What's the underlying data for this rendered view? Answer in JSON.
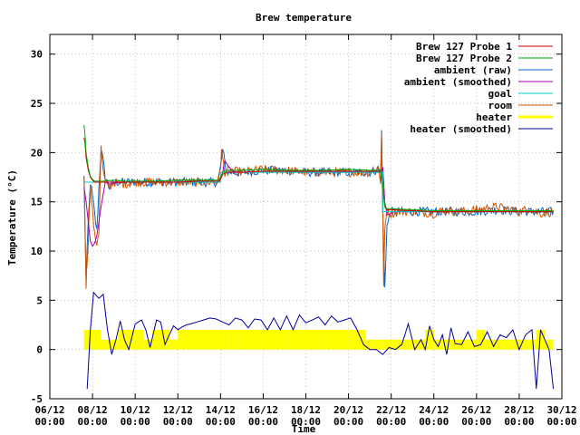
{
  "chart_data": {
    "type": "line",
    "title": "Brew temperature",
    "xlabel": "Time",
    "ylabel": "Temperature (°C)",
    "ylim": [
      -5,
      32
    ],
    "xlim": [
      0,
      24
    ],
    "yticks": [
      -5,
      0,
      5,
      10,
      15,
      20,
      25,
      30
    ],
    "xticks": [
      {
        "x": 0,
        "line1": "06/12",
        "line2": "00:00"
      },
      {
        "x": 2,
        "line1": "08/12",
        "line2": "00:00"
      },
      {
        "x": 4,
        "line1": "10/12",
        "line2": "00:00"
      },
      {
        "x": 6,
        "line1": "12/12",
        "line2": "00:00"
      },
      {
        "x": 8,
        "line1": "14/12",
        "line2": "00:00"
      },
      {
        "x": 10,
        "line1": "16/12",
        "line2": "00:00"
      },
      {
        "x": 12,
        "line1": "18/12",
        "line2": "00:00"
      },
      {
        "x": 14,
        "line1": "20/12",
        "line2": "00:00"
      },
      {
        "x": 16,
        "line1": "22/12",
        "line2": "00:00"
      },
      {
        "x": 18,
        "line1": "24/12",
        "line2": "00:00"
      },
      {
        "x": 20,
        "line1": "26/12",
        "line2": "00:00"
      },
      {
        "x": 22,
        "line1": "28/12",
        "line2": "00:00"
      },
      {
        "x": 24,
        "line1": "30/12",
        "line2": "00:00"
      }
    ],
    "grid": true,
    "legend_position": "top-right",
    "series": [
      {
        "name": "Brew 127 Probe 1",
        "color": "#cc0000",
        "kind": "line",
        "x": [
          1.6,
          1.65,
          1.7,
          1.8,
          1.9,
          2.0,
          2.1,
          2.2,
          2.4,
          2.6,
          3.0,
          3.5,
          4.0,
          5.0,
          6.0,
          7.0,
          7.9,
          8.0,
          8.1,
          8.3,
          8.6,
          9.0,
          10.0,
          11.0,
          12.0,
          13.0,
          14.0,
          15.0,
          15.5,
          15.6,
          15.7,
          15.8,
          16.0,
          17.0,
          18.0,
          19.0,
          20.0,
          21.0,
          22.0,
          23.0,
          23.6
        ],
        "y": [
          21.5,
          21.0,
          19.5,
          18.2,
          17.5,
          17.2,
          17.0,
          17.0,
          17.0,
          17.0,
          17.0,
          17.0,
          17.0,
          17.0,
          17.0,
          17.1,
          17.1,
          17.3,
          17.8,
          18.0,
          18.0,
          18.0,
          18.1,
          18.1,
          18.1,
          18.1,
          18.1,
          18.1,
          18.1,
          16.5,
          14.5,
          14.2,
          14.2,
          14.1,
          14.0,
          14.0,
          14.0,
          14.0,
          14.0,
          14.0,
          14.0
        ]
      },
      {
        "name": "Brew 127 Probe 2",
        "color": "#00aa00",
        "kind": "line",
        "x": [
          1.6,
          1.65,
          1.7,
          1.8,
          1.9,
          2.0,
          2.1,
          2.2,
          2.4,
          2.6,
          3.0,
          3.5,
          4.0,
          5.0,
          6.0,
          7.0,
          7.9,
          8.0,
          8.1,
          8.3,
          8.6,
          9.0,
          10.0,
          11.0,
          12.0,
          13.0,
          14.0,
          15.0,
          15.5,
          15.6,
          15.7,
          15.8,
          16.0,
          17.0,
          18.0,
          19.0,
          20.0,
          21.0,
          22.0,
          23.0,
          23.6
        ],
        "y": [
          22.8,
          21.8,
          20.0,
          18.5,
          17.6,
          17.3,
          17.1,
          17.1,
          17.1,
          17.1,
          17.2,
          17.1,
          17.1,
          17.1,
          17.2,
          17.2,
          17.2,
          17.5,
          18.0,
          18.2,
          18.2,
          18.2,
          18.3,
          18.2,
          18.2,
          18.2,
          18.3,
          18.2,
          18.2,
          16.7,
          14.6,
          14.3,
          14.3,
          14.2,
          14.1,
          14.1,
          14.1,
          14.1,
          14.1,
          14.1,
          14.1
        ]
      },
      {
        "name": "ambient (raw)",
        "color": "#0066cc",
        "kind": "noisy",
        "x": [
          1.6,
          1.7,
          1.8,
          1.9,
          2.0,
          2.2,
          2.4,
          2.6,
          2.8,
          3.0,
          3.5,
          4.0,
          5.0,
          6.0,
          7.0,
          7.8,
          7.9,
          8.0,
          8.1,
          8.3,
          9.0,
          10.0,
          11.0,
          12.0,
          13.0,
          14.0,
          15.0,
          15.4,
          15.5,
          15.55,
          15.6,
          15.7,
          15.8,
          16.0,
          17.0,
          18.0,
          19.0,
          20.0,
          21.0,
          22.0,
          23.0,
          23.6
        ],
        "y": [
          17.5,
          7.0,
          13.0,
          17.0,
          15.5,
          12.0,
          20.5,
          17.5,
          16.5,
          17.0,
          17.0,
          17.0,
          17.0,
          17.0,
          17.0,
          17.0,
          17.2,
          18.5,
          20.2,
          18.0,
          18.0,
          18.2,
          18.2,
          18.0,
          18.0,
          18.0,
          18.0,
          18.3,
          18.0,
          22.0,
          14.0,
          6.5,
          12.5,
          14.0,
          14.0,
          14.0,
          14.0,
          14.0,
          14.2,
          14.0,
          14.0,
          14.0
        ]
      },
      {
        "name": "ambient (smoothed)",
        "color": "#aa00aa",
        "kind": "line",
        "x": [
          1.6,
          1.7,
          1.8,
          1.9,
          2.0,
          2.1,
          2.2,
          2.4,
          2.6,
          2.8,
          3.0,
          3.5,
          4.0,
          5.0,
          6.0,
          7.0,
          7.9,
          8.0,
          8.1,
          8.2,
          8.4,
          8.6,
          9.0,
          10.0,
          11.0,
          12.0,
          13.0,
          14.0,
          15.0,
          15.5,
          15.6,
          15.65,
          15.7,
          15.8,
          15.9,
          16.0,
          16.2,
          17.0,
          18.0,
          19.0,
          20.0,
          21.0,
          22.0,
          23.0,
          23.6
        ],
        "y": [
          16.5,
          15.0,
          13.0,
          11.0,
          10.5,
          10.8,
          11.5,
          14.5,
          17.0,
          16.8,
          16.9,
          17.0,
          17.0,
          17.0,
          17.0,
          17.0,
          17.0,
          17.2,
          18.0,
          19.2,
          18.5,
          18.1,
          18.0,
          18.1,
          18.1,
          18.0,
          18.0,
          18.0,
          18.0,
          18.0,
          18.5,
          17.0,
          15.0,
          13.7,
          13.7,
          13.9,
          14.0,
          14.0,
          14.0,
          14.0,
          14.0,
          14.0,
          14.0,
          14.0,
          14.0
        ]
      },
      {
        "name": "goal",
        "color": "#00cccc",
        "kind": "step",
        "x": [
          1.6,
          2.0,
          8.0,
          15.6,
          23.6
        ],
        "y": [
          17.0,
          17.0,
          18.0,
          14.0,
          14.0
        ]
      },
      {
        "name": "room",
        "color": "#cc5500",
        "kind": "noisy",
        "x": [
          1.6,
          1.65,
          1.7,
          1.75,
          1.8,
          1.85,
          1.9,
          2.0,
          2.1,
          2.2,
          2.3,
          2.4,
          2.5,
          2.6,
          2.8,
          3.0,
          3.5,
          4.0,
          5.0,
          6.0,
          7.0,
          7.8,
          7.9,
          8.0,
          8.05,
          8.1,
          8.2,
          8.4,
          9.0,
          10.0,
          11.0,
          12.0,
          13.0,
          14.0,
          15.0,
          15.4,
          15.5,
          15.55,
          15.6,
          15.65,
          15.7,
          15.75,
          15.8,
          16.0,
          16.5,
          17.0,
          18.0,
          18.5,
          19.0,
          20.0,
          21.0,
          22.0,
          22.5,
          23.0,
          23.6
        ],
        "y": [
          17.5,
          13.0,
          6.5,
          9.0,
          11.0,
          14.5,
          16.5,
          14.0,
          11.5,
          10.8,
          12.0,
          20.5,
          18.0,
          17.0,
          16.5,
          17.0,
          16.8,
          17.0,
          17.0,
          17.0,
          17.0,
          17.0,
          17.2,
          18.5,
          20.2,
          19.5,
          18.0,
          18.2,
          18.0,
          18.3,
          18.2,
          18.0,
          18.0,
          18.0,
          18.0,
          18.5,
          17.0,
          22.0,
          15.0,
          6.3,
          12.0,
          13.5,
          14.0,
          13.8,
          14.0,
          14.0,
          13.8,
          14.2,
          14.0,
          14.2,
          14.5,
          14.0,
          14.3,
          13.8,
          14.0
        ]
      },
      {
        "name": "heater",
        "color": "#ffff00",
        "kind": "bars",
        "x": [
          1.8,
          2.2,
          2.6,
          3.0,
          3.4,
          3.8,
          4.2,
          4.6,
          5.0,
          5.4,
          5.8,
          6.2,
          6.6,
          7.0,
          7.4,
          7.8,
          8.2,
          8.6,
          9.0,
          9.4,
          9.8,
          10.2,
          10.6,
          11.0,
          11.4,
          11.8,
          12.2,
          12.6,
          13.0,
          13.4,
          13.8,
          14.2,
          14.6,
          15.0,
          15.4,
          15.8,
          16.2,
          16.6,
          17.0,
          17.4,
          17.8,
          18.2,
          18.6,
          19.0,
          19.4,
          19.8,
          20.2,
          20.6,
          21.0,
          21.4,
          21.8,
          22.2,
          22.6,
          23.0,
          23.4
        ],
        "y": [
          2,
          2,
          1,
          1,
          2,
          2,
          2,
          1,
          2,
          2,
          1,
          2,
          2,
          2,
          2,
          2,
          2,
          2,
          2,
          2,
          2,
          2,
          2,
          2,
          2,
          2,
          2,
          2,
          2,
          2,
          2,
          2,
          2,
          1,
          1,
          1,
          1,
          1,
          1,
          1,
          2,
          1,
          1,
          1,
          1,
          1,
          2,
          1,
          1,
          1,
          1,
          1,
          1,
          2,
          1
        ]
      },
      {
        "name": "heater (smoothed)",
        "color": "#000099",
        "kind": "line",
        "x": [
          1.75,
          1.9,
          2.05,
          2.3,
          2.5,
          2.7,
          2.9,
          3.1,
          3.3,
          3.5,
          3.7,
          4.0,
          4.3,
          4.5,
          4.7,
          5.0,
          5.2,
          5.4,
          5.6,
          5.8,
          6.0,
          6.2,
          6.4,
          6.6,
          6.9,
          7.2,
          7.5,
          7.8,
          8.1,
          8.4,
          8.7,
          9.0,
          9.3,
          9.6,
          9.9,
          10.2,
          10.5,
          10.8,
          11.1,
          11.4,
          11.7,
          12.0,
          12.3,
          12.6,
          12.9,
          13.2,
          13.5,
          13.8,
          14.1,
          14.4,
          14.7,
          15.0,
          15.3,
          15.6,
          15.9,
          16.2,
          16.5,
          16.8,
          17.1,
          17.4,
          17.6,
          17.8,
          18.0,
          18.2,
          18.4,
          18.6,
          18.8,
          19.0,
          19.3,
          19.6,
          19.9,
          20.2,
          20.5,
          20.8,
          21.1,
          21.4,
          21.7,
          22.0,
          22.3,
          22.6,
          22.8,
          23.0,
          23.2,
          23.4,
          23.6
        ],
        "y": [
          -4.0,
          2.0,
          5.8,
          5.2,
          5.6,
          2.0,
          -0.5,
          1.0,
          2.9,
          1.0,
          0.0,
          2.6,
          3.0,
          2.0,
          0.2,
          3.0,
          2.8,
          0.5,
          1.5,
          2.4,
          2.0,
          2.3,
          2.5,
          2.6,
          2.8,
          3.0,
          3.2,
          3.1,
          2.8,
          2.5,
          3.2,
          3.0,
          2.2,
          3.1,
          3.0,
          2.0,
          3.2,
          2.0,
          3.4,
          2.0,
          3.5,
          2.7,
          3.0,
          3.3,
          2.5,
          3.4,
          2.8,
          3.0,
          3.2,
          2.0,
          0.5,
          0.0,
          0.0,
          -0.5,
          0.2,
          0.0,
          0.5,
          2.6,
          0.0,
          1.0,
          0.0,
          2.4,
          1.0,
          0.3,
          1.5,
          -0.5,
          2.2,
          0.6,
          0.5,
          1.8,
          0.3,
          0.5,
          1.8,
          0.3,
          1.5,
          1.2,
          2.0,
          0.0,
          1.5,
          2.0,
          -4.0,
          2.0,
          1.0,
          0.0,
          -4.0
        ]
      }
    ]
  }
}
